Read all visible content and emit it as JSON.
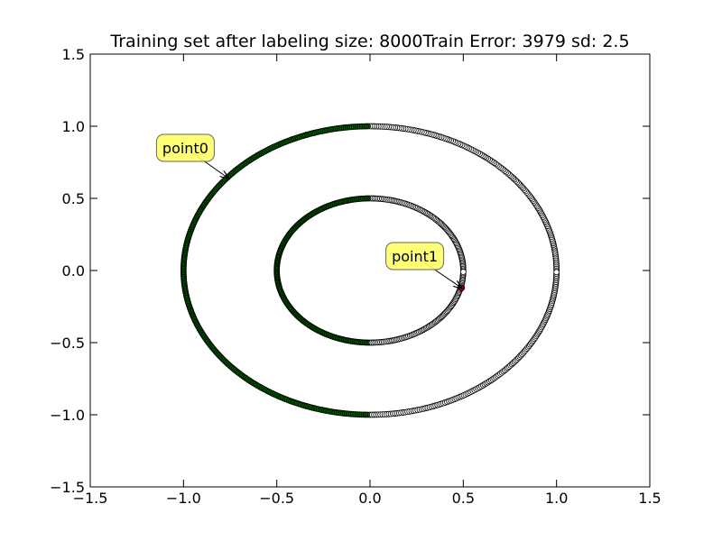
{
  "chart_data": {
    "type": "scatter",
    "title": "Training set after labeling size: 8000Train Error: 3979 sd: 2.5",
    "xlabel": "",
    "ylabel": "",
    "xlim": [
      -1.5,
      1.5
    ],
    "ylim": [
      -1.5,
      1.5
    ],
    "x_ticks": [
      -1.5,
      -1.0,
      -0.5,
      0.0,
      0.5,
      1.0,
      1.5
    ],
    "y_ticks": [
      -1.5,
      -1.0,
      -0.5,
      0.0,
      0.5,
      1.0,
      1.5
    ],
    "x_tick_labels": [
      "−1.5",
      "−1.0",
      "−0.5",
      "0.0",
      "0.5",
      "1.0",
      "1.5"
    ],
    "y_tick_labels": [
      "−1.5",
      "−1.0",
      "−0.5",
      "0.0",
      "0.5",
      "1.0",
      "1.5"
    ],
    "grid": false,
    "series": [
      {
        "shape": "ring",
        "radius": 1.0,
        "colors": {
          "left_half": "#006400",
          "right_half": "#ffffff"
        }
      },
      {
        "shape": "ring",
        "radius": 0.5,
        "colors": {
          "left_half": "#006400",
          "right_half": "#ffffff"
        }
      }
    ],
    "annotations": [
      {
        "text": "point0",
        "point": [
          -0.76,
          0.64
        ],
        "text_at": [
          -0.99,
          0.85
        ],
        "box_color": "#ffff66"
      },
      {
        "text": "point1",
        "point": [
          0.49,
          -0.12
        ],
        "text_at": [
          0.24,
          0.1
        ],
        "box_color": "#ffff66",
        "marker_color": "#8b0000"
      }
    ]
  }
}
